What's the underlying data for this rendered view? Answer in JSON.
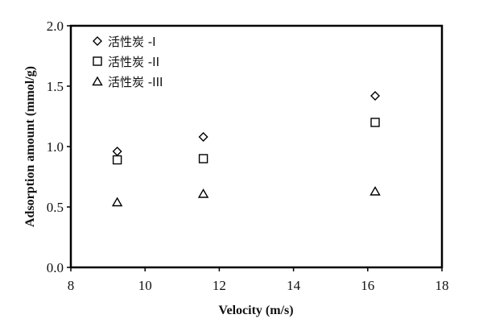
{
  "chart_data": {
    "type": "scatter",
    "title": "",
    "xlabel": "Velocity (m/s)",
    "ylabel": "Adsorption amount (mmol/g)",
    "xlim": [
      8,
      18
    ],
    "ylim": [
      0,
      2.0
    ],
    "xticks": [
      "8",
      "10",
      "12",
      "14",
      "16",
      "18"
    ],
    "yticks": [
      "0.0",
      "0.5",
      "1.0",
      "1.5",
      "2.0"
    ],
    "grid": false,
    "legend_position": "top-left",
    "series": [
      {
        "name": "活性炭 -I",
        "marker": "diamond",
        "x": [
          9.25,
          11.57,
          16.2
        ],
        "y": [
          0.96,
          1.08,
          1.42
        ]
      },
      {
        "name": "活性炭 -II",
        "marker": "square",
        "x": [
          9.25,
          11.57,
          16.2
        ],
        "y": [
          0.89,
          0.9,
          1.2
        ]
      },
      {
        "name": "活性炭 -III",
        "marker": "triangle",
        "x": [
          9.25,
          11.57,
          16.2
        ],
        "y": [
          0.54,
          0.61,
          0.63
        ]
      }
    ]
  }
}
